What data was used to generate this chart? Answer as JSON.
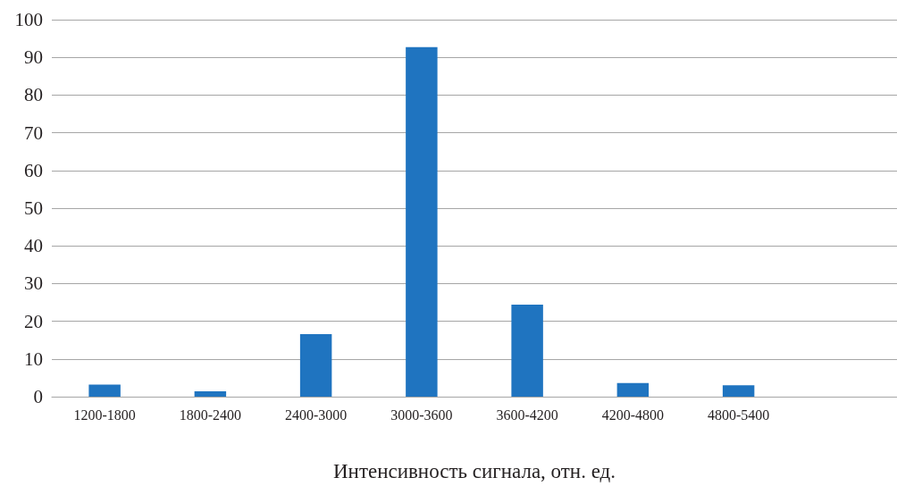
{
  "chart_data": {
    "type": "bar",
    "xlabel": "Интенсивность сигнала, отн. ед.",
    "categories": [
      "1200-1800",
      "1800-2400",
      "2400-3000",
      "3000-3600",
      "3600-4200",
      "4200-4800",
      "4800-5400",
      null
    ],
    "values": [
      3.2,
      1.4,
      16.6,
      92.7,
      24.4,
      3.6,
      3.0,
      null
    ],
    "color": "#1f74c0",
    "ylim": [
      0,
      100
    ],
    "yticks": [
      0,
      10,
      20,
      30,
      40,
      50,
      60,
      70,
      80,
      90,
      100
    ],
    "grid": "y"
  }
}
